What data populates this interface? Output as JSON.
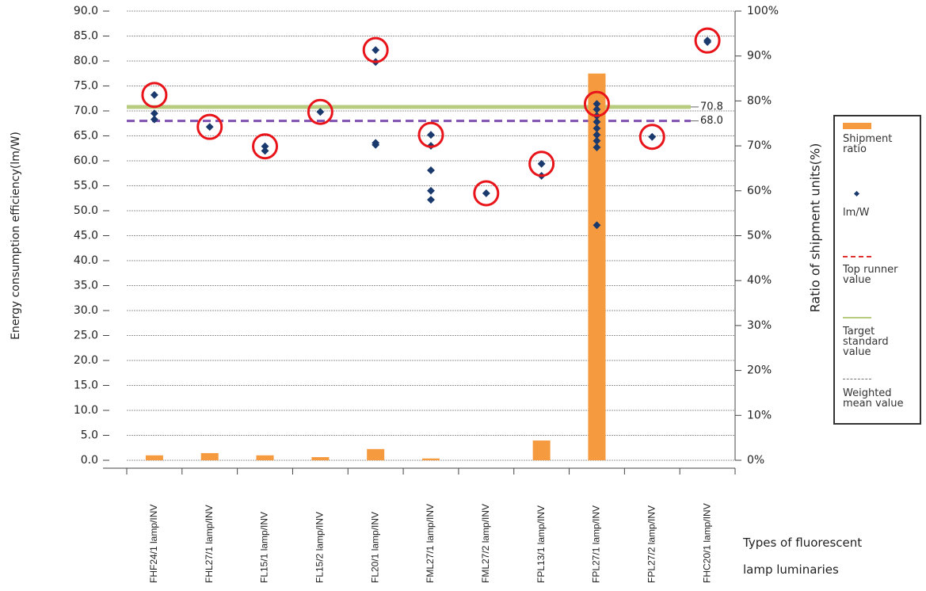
{
  "chart_data": {
    "type": "bar_scatter",
    "ylabel": "Energy consumption efficiency(lm/W)",
    "y2label": "Ratio of shipment units(%)",
    "xlabel": "Types of fluorescent lamp luminaries",
    "categories": [
      "FHF24/1 lamp/INV",
      "FHL27/1 lamp/INV",
      "FL15/1 lamp/INV",
      "FL15/2 lamp/INV",
      "FL20/1 lamp/INV",
      "FML27/1 lamp/INV",
      "FML27/2 lamp/INV",
      "FPL13/1 lamp/INV",
      "FPL27/1 lamp/INV",
      "FPL27/2 lamp/INV",
      "FHC20/1 lamp/INV"
    ],
    "series": [
      {
        "name": "Shipment ratio",
        "type": "bar",
        "axis": "y2",
        "color": "#f59a3f",
        "values": [
          1.1,
          1.6,
          1.1,
          0.7,
          2.5,
          0.4,
          0,
          4.4,
          86.1,
          0,
          0
        ]
      },
      {
        "name": "lm/W",
        "type": "scatter",
        "color": "#1a3a6e",
        "values": [
          [
            73.2,
            69.5,
            68.3
          ],
          [
            66.8
          ],
          [
            62.9,
            62.0
          ],
          [
            69.8
          ],
          [
            82.2,
            79.8,
            63.6,
            63.2
          ],
          [
            65.2,
            63.0,
            58.1,
            54.0,
            52.2
          ],
          [
            53.5
          ],
          [
            59.4,
            57.0
          ],
          [
            71.4,
            70.3,
            69.0,
            67.8,
            66.5,
            65.2,
            64.0,
            62.7,
            47.1
          ],
          [
            64.8
          ],
          [
            84.1,
            83.8
          ]
        ]
      }
    ],
    "reference_lines": [
      {
        "name": "Top runner value",
        "color": "#e03030"
      },
      {
        "name": "Target standard value",
        "color": "#b8cc80",
        "value": 70.8
      },
      {
        "name": "Weighted mean value",
        "color": "#8050b0",
        "value": 68,
        "label": "68.0"
      }
    ],
    "ylim": [
      0,
      90
    ],
    "yticks": [
      {
        "value": 0,
        "label": "0.0"
      },
      {
        "value": 5,
        "label": "5.0"
      },
      {
        "value": 10,
        "label": "10.0"
      },
      {
        "value": 15,
        "label": "15.0"
      },
      {
        "value": 20,
        "label": "20.0"
      },
      {
        "value": 25,
        "label": "25.0"
      },
      {
        "value": 30,
        "label": "30.0"
      },
      {
        "value": 35,
        "label": "35.0"
      },
      {
        "value": 40,
        "label": "40.0"
      },
      {
        "value": 45,
        "label": "45.0"
      },
      {
        "value": 50,
        "label": "50.0"
      },
      {
        "value": 55,
        "label": "55.0"
      },
      {
        "value": 60,
        "label": "60.0"
      },
      {
        "value": 65,
        "label": "65.0"
      },
      {
        "value": 70,
        "label": "70.0"
      },
      {
        "value": 75,
        "label": "75.0"
      },
      {
        "value": 80,
        "label": "80.0"
      },
      {
        "value": 85,
        "label": "85.0"
      },
      {
        "value": 90,
        "label": "90.0"
      }
    ],
    "y2lim": [
      0,
      100
    ],
    "y2ticks": [
      {
        "value": 0,
        "label": "0%"
      },
      {
        "value": 10,
        "label": "10%"
      },
      {
        "value": 20,
        "label": "20%"
      },
      {
        "value": 30,
        "label": "30%"
      },
      {
        "value": 40,
        "label": "40%"
      },
      {
        "value": 50,
        "label": "50%"
      },
      {
        "value": 60,
        "label": "60%"
      },
      {
        "value": 70,
        "label": "70%"
      },
      {
        "value": 80,
        "label": "80%"
      },
      {
        "value": 90,
        "label": "90%"
      },
      {
        "value": 100,
        "label": "100%"
      }
    ],
    "grid": true
  }
}
